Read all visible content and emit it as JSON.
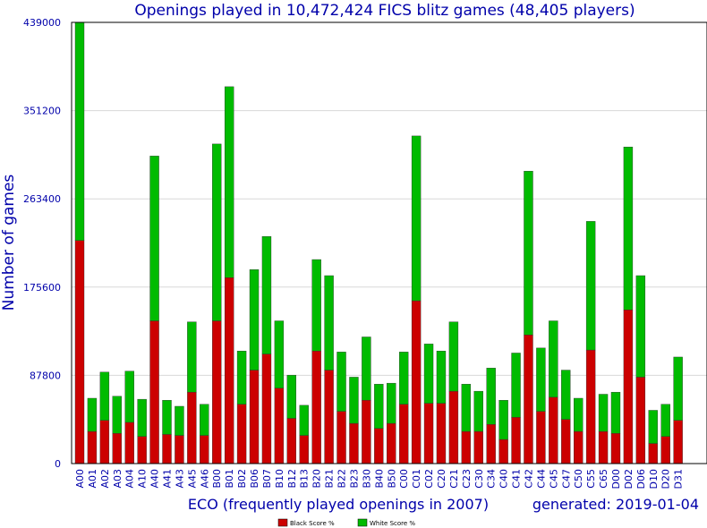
{
  "chart_data": {
    "type": "bar",
    "stacked": true,
    "title": "Openings played in 10,472,424 FICS blitz games (48,405 players)",
    "xlabel": "ECO (frequently played openings in 2007)",
    "ylabel": "Number of games",
    "generated": "generated: 2019-01-04",
    "ylim": [
      0,
      439000
    ],
    "yticks": [
      "0",
      "87800",
      "175600",
      "263400",
      "351200",
      "439000"
    ],
    "grid": true,
    "legend_position": "bottom-center",
    "categories": [
      "A00",
      "A01",
      "A02",
      "A03",
      "A04",
      "A10",
      "A40",
      "A41",
      "A43",
      "A45",
      "A46",
      "B00",
      "B01",
      "B02",
      "B06",
      "B07",
      "B10",
      "B12",
      "B13",
      "B20",
      "B21",
      "B22",
      "B23",
      "B30",
      "B40",
      "B50",
      "C00",
      "C01",
      "C02",
      "C20",
      "C21",
      "C23",
      "C30",
      "C34",
      "C40",
      "C41",
      "C42",
      "C44",
      "C45",
      "C47",
      "C50",
      "C55",
      "C65",
      "D00",
      "D02",
      "D06",
      "D10",
      "D20",
      "D31"
    ],
    "series": [
      {
        "name": "Black Score %",
        "color": "#cc0000",
        "values": [
          222000,
          32000,
          43000,
          30000,
          41000,
          27000,
          142000,
          29000,
          28000,
          71000,
          28000,
          142000,
          185000,
          59000,
          93000,
          109000,
          75000,
          45000,
          28000,
          112000,
          93000,
          52000,
          40000,
          63000,
          35000,
          40000,
          59000,
          162000,
          60000,
          60000,
          72000,
          32000,
          32000,
          39000,
          24000,
          46000,
          128000,
          52000,
          66000,
          44000,
          32000,
          113000,
          32000,
          30000,
          153000,
          86000,
          20000,
          27000,
          43000
        ]
      },
      {
        "name": "White Score %",
        "color": "#00bb00",
        "values": [
          217000,
          33000,
          48000,
          37000,
          51000,
          37000,
          164000,
          34000,
          29000,
          70000,
          31000,
          176000,
          190000,
          53000,
          100000,
          117000,
          67000,
          43000,
          30000,
          91000,
          94000,
          59000,
          46000,
          63000,
          44000,
          40000,
          52000,
          164000,
          59000,
          52000,
          69000,
          47000,
          40000,
          56000,
          39000,
          64000,
          163000,
          63000,
          76000,
          49000,
          33000,
          128000,
          37000,
          41000,
          162000,
          101000,
          33000,
          32000,
          63000
        ]
      }
    ]
  },
  "colors": {
    "text": "#0000aa",
    "black_bar": "#cc0000",
    "white_bar": "#00bb00",
    "grid": "#d8d8d8"
  }
}
